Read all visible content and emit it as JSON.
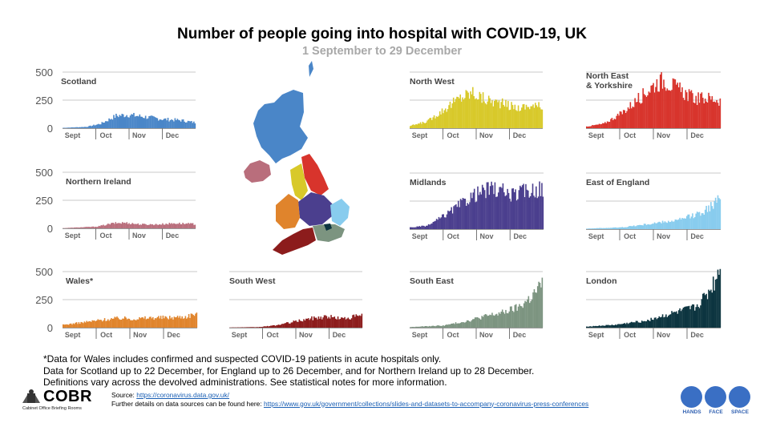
{
  "title": "Number of people going into hospital with COVID-19, UK",
  "subtitle": "1 September to 29 December",
  "notes": [
    "*Data for Wales includes confirmed and suspected COVID-19 patients in acute hospitals only.",
    "Data for Scotland up to 22 December, for England up to 26 December, and for Northern Ireland up to 28 December.",
    "Definitions vary across the devolved administrations. See statistical notes for more information."
  ],
  "footer": {
    "logo_text": "COBR",
    "logo_subtext": "Cabinet Office Briefing Rooms",
    "source_label": "Source: ",
    "source_link": "https://coronavirus.data.gov.uk/",
    "details_label": "Further details on data sources can be found here: ",
    "details_link": "https://www.gov.uk/government/collections/slides-and-datasets-to-accompany-coronavirus-press-conferences",
    "hfs": [
      "HANDS",
      "FACE",
      "SPACE"
    ]
  },
  "colors": {
    "scotland": "#4a86c8",
    "northern_ireland": "#b96e7c",
    "wales": "#e0842c",
    "south_west": "#8c1c1c",
    "north_west": "#d8c92a",
    "north_east": "#d8342c",
    "midlands": "#4b3f8e",
    "east_of_england": "#88ccee",
    "south_east": "#7c9480",
    "london": "#0d3540"
  },
  "chart_data": [
    {
      "id": "scotland",
      "type": "bar",
      "title": "Scotland",
      "color": "#4a86c8",
      "ylim": [
        0,
        500
      ],
      "yticks": [
        0,
        250,
        500
      ],
      "xticks": [
        "Sept",
        "Oct",
        "Nov",
        "Dec"
      ],
      "anchors": [
        [
          0,
          3
        ],
        [
          20,
          12
        ],
        [
          32,
          40
        ],
        [
          45,
          110
        ],
        [
          55,
          120
        ],
        [
          70,
          100
        ],
        [
          85,
          80
        ],
        [
          100,
          70
        ],
        [
          112,
          50
        ]
      ],
      "n": 113
    },
    {
      "id": "northern_ireland",
      "type": "bar",
      "title": "Northern Ireland",
      "color": "#b96e7c",
      "ylim": [
        0,
        500
      ],
      "yticks": [
        0,
        250,
        500
      ],
      "xticks": [
        "Sept",
        "Oct",
        "Nov",
        "Dec"
      ],
      "anchors": [
        [
          0,
          2
        ],
        [
          30,
          15
        ],
        [
          45,
          45
        ],
        [
          55,
          50
        ],
        [
          70,
          35
        ],
        [
          85,
          35
        ],
        [
          100,
          45
        ],
        [
          118,
          38
        ]
      ],
      "n": 119
    },
    {
      "id": "wales",
      "type": "bar",
      "title": "Wales*",
      "color": "#e0842c",
      "ylim": [
        0,
        500
      ],
      "yticks": [
        0,
        250,
        500
      ],
      "xticks": [
        "Sept",
        "Oct",
        "Nov",
        "Dec"
      ],
      "anchors": [
        [
          0,
          25
        ],
        [
          20,
          50
        ],
        [
          35,
          70
        ],
        [
          50,
          85
        ],
        [
          65,
          80
        ],
        [
          80,
          90
        ],
        [
          95,
          90
        ],
        [
          110,
          100
        ],
        [
          119,
          130
        ]
      ],
      "n": 120
    },
    {
      "id": "south_west",
      "type": "bar",
      "title": "South West",
      "color": "#8c1c1c",
      "ylim": [
        0,
        500
      ],
      "yticks": [
        0,
        250,
        500
      ],
      "xticks": [
        "Sept",
        "Oct",
        "Nov",
        "Dec"
      ],
      "anchors": [
        [
          0,
          2
        ],
        [
          25,
          5
        ],
        [
          40,
          20
        ],
        [
          55,
          50
        ],
        [
          70,
          80
        ],
        [
          85,
          100
        ],
        [
          100,
          80
        ],
        [
          116,
          110
        ]
      ],
      "n": 117
    },
    {
      "id": "north_west",
      "type": "bar",
      "title": "North West",
      "color": "#d8c92a",
      "ylim": [
        0,
        500
      ],
      "yticks": [
        0,
        250,
        500
      ],
      "xticks": [
        "Sept",
        "Oct",
        "Nov",
        "Dec"
      ],
      "anchors": [
        [
          0,
          20
        ],
        [
          15,
          60
        ],
        [
          30,
          170
        ],
        [
          45,
          280
        ],
        [
          55,
          320
        ],
        [
          65,
          260
        ],
        [
          80,
          220
        ],
        [
          95,
          180
        ],
        [
          105,
          200
        ],
        [
          116,
          190
        ]
      ],
      "n": 117
    },
    {
      "id": "north_east",
      "type": "bar",
      "title": "North East & Yorkshire",
      "color": "#d8342c",
      "ylim": [
        0,
        500
      ],
      "yticks": [
        0,
        250,
        500
      ],
      "xticks": [
        "Sept",
        "Oct",
        "Nov",
        "Dec"
      ],
      "anchors": [
        [
          0,
          15
        ],
        [
          15,
          40
        ],
        [
          30,
          130
        ],
        [
          45,
          260
        ],
        [
          60,
          400
        ],
        [
          68,
          430
        ],
        [
          80,
          340
        ],
        [
          95,
          260
        ],
        [
          105,
          270
        ],
        [
          116,
          250
        ]
      ],
      "n": 117
    },
    {
      "id": "midlands",
      "type": "bar",
      "title": "Midlands",
      "color": "#4b3f8e",
      "ylim": [
        0,
        500
      ],
      "yticks": [
        0,
        250,
        500
      ],
      "xticks": [
        "Sept",
        "Oct",
        "Nov",
        "Dec"
      ],
      "anchors": [
        [
          0,
          15
        ],
        [
          15,
          30
        ],
        [
          30,
          120
        ],
        [
          45,
          230
        ],
        [
          55,
          300
        ],
        [
          70,
          360
        ],
        [
          80,
          340
        ],
        [
          90,
          300
        ],
        [
          100,
          340
        ],
        [
          116,
          360
        ]
      ],
      "n": 117
    },
    {
      "id": "east_of_england",
      "type": "bar",
      "title": "East of England",
      "color": "#88ccee",
      "ylim": [
        0,
        500
      ],
      "yticks": [
        0,
        250,
        500
      ],
      "xticks": [
        "Sept",
        "Oct",
        "Nov",
        "Dec"
      ],
      "anchors": [
        [
          0,
          5
        ],
        [
          30,
          15
        ],
        [
          50,
          40
        ],
        [
          65,
          60
        ],
        [
          80,
          80
        ],
        [
          95,
          130
        ],
        [
          105,
          180
        ],
        [
          116,
          270
        ]
      ],
      "n": 117
    },
    {
      "id": "south_east",
      "type": "bar",
      "title": "South East",
      "color": "#7c9480",
      "ylim": [
        0,
        500
      ],
      "yticks": [
        0,
        250,
        500
      ],
      "xticks": [
        "Sept",
        "Oct",
        "Nov",
        "Dec"
      ],
      "anchors": [
        [
          0,
          5
        ],
        [
          30,
          20
        ],
        [
          50,
          60
        ],
        [
          65,
          100
        ],
        [
          80,
          130
        ],
        [
          95,
          180
        ],
        [
          105,
          260
        ],
        [
          116,
          380
        ]
      ],
      "n": 117
    },
    {
      "id": "london",
      "type": "bar",
      "title": "London",
      "color": "#0d3540",
      "ylim": [
        0,
        500
      ],
      "yticks": [
        0,
        250,
        500
      ],
      "xticks": [
        "Sept",
        "Oct",
        "Nov",
        "Dec"
      ],
      "anchors": [
        [
          0,
          10
        ],
        [
          25,
          25
        ],
        [
          50,
          60
        ],
        [
          65,
          100
        ],
        [
          80,
          140
        ],
        [
          95,
          180
        ],
        [
          105,
          300
        ],
        [
          112,
          420
        ],
        [
          116,
          570
        ]
      ],
      "n": 117
    }
  ]
}
